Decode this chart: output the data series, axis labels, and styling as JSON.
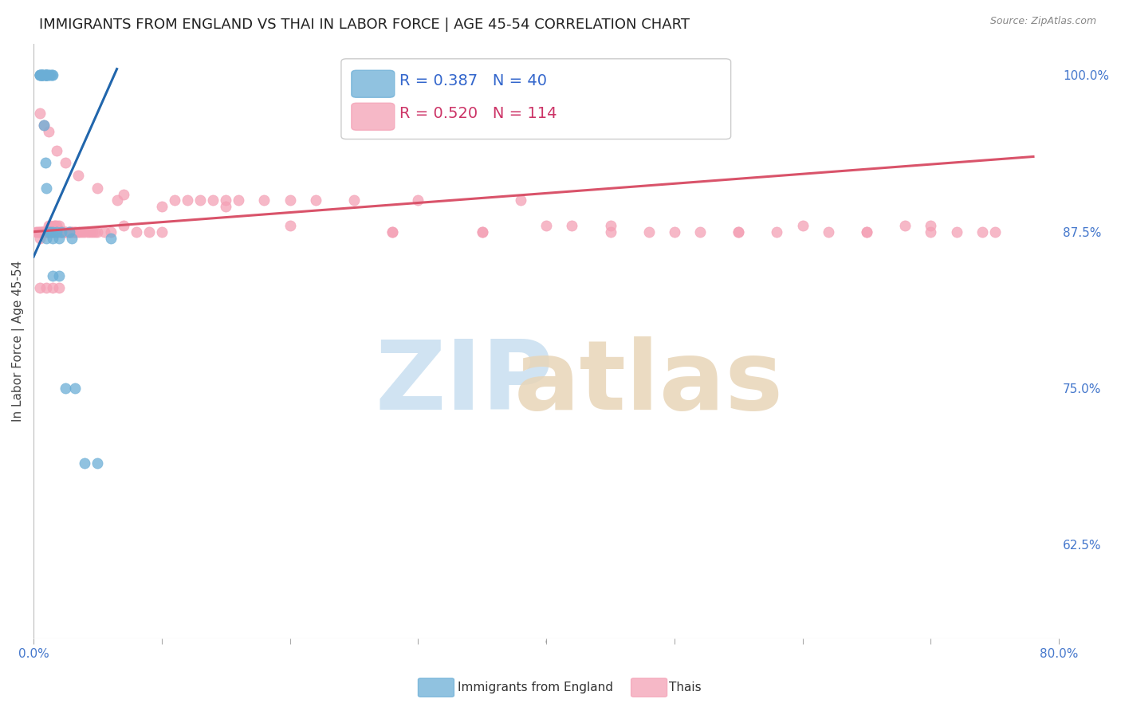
{
  "title": "IMMIGRANTS FROM ENGLAND VS THAI IN LABOR FORCE | AGE 45-54 CORRELATION CHART",
  "source": "Source: ZipAtlas.com",
  "ylabel": "In Labor Force | Age 45-54",
  "xlim": [
    0.0,
    0.8
  ],
  "ylim": [
    0.55,
    1.025
  ],
  "xticks": [
    0.0,
    0.1,
    0.2,
    0.3,
    0.4,
    0.5,
    0.6,
    0.7,
    0.8
  ],
  "xticklabels": [
    "0.0%",
    "",
    "",
    "",
    "",
    "",
    "",
    "",
    "80.0%"
  ],
  "yticks": [
    0.625,
    0.75,
    0.875,
    1.0
  ],
  "yticklabels": [
    "62.5%",
    "75.0%",
    "87.5%",
    "100.0%"
  ],
  "legend_R_blue": "R = 0.387",
  "legend_N_blue": "N = 40",
  "legend_R_pink": "R = 0.520",
  "legend_N_pink": "N = 114",
  "blue_color": "#6baed6",
  "pink_color": "#f4a0b5",
  "blue_line_color": "#2166ac",
  "pink_line_color": "#d9536a",
  "blue_x": [
    0.005,
    0.005,
    0.005,
    0.006,
    0.006,
    0.007,
    0.007,
    0.007,
    0.008,
    0.009,
    0.009,
    0.01,
    0.01,
    0.01,
    0.01,
    0.011,
    0.012,
    0.013,
    0.014,
    0.015,
    0.008,
    0.009,
    0.01,
    0.012,
    0.013,
    0.015,
    0.018,
    0.022,
    0.028,
    0.015,
    0.02,
    0.025,
    0.032,
    0.04,
    0.05,
    0.01,
    0.015,
    0.02,
    0.03,
    0.06
  ],
  "blue_y": [
    1.0,
    1.0,
    1.0,
    1.0,
    1.0,
    1.0,
    1.0,
    1.0,
    1.0,
    1.0,
    1.0,
    1.0,
    1.0,
    1.0,
    1.0,
    1.0,
    1.0,
    1.0,
    1.0,
    1.0,
    0.96,
    0.93,
    0.91,
    0.875,
    0.875,
    0.875,
    0.875,
    0.875,
    0.875,
    0.84,
    0.84,
    0.75,
    0.75,
    0.69,
    0.69,
    0.87,
    0.87,
    0.87,
    0.87,
    0.87
  ],
  "pink_x": [
    0.002,
    0.003,
    0.004,
    0.005,
    0.005,
    0.006,
    0.007,
    0.007,
    0.008,
    0.008,
    0.009,
    0.009,
    0.01,
    0.01,
    0.011,
    0.011,
    0.012,
    0.012,
    0.013,
    0.013,
    0.014,
    0.014,
    0.015,
    0.015,
    0.016,
    0.016,
    0.017,
    0.017,
    0.018,
    0.018,
    0.019,
    0.02,
    0.02,
    0.021,
    0.022,
    0.022,
    0.023,
    0.024,
    0.025,
    0.025,
    0.027,
    0.028,
    0.029,
    0.03,
    0.031,
    0.032,
    0.033,
    0.035,
    0.036,
    0.038,
    0.04,
    0.042,
    0.044,
    0.046,
    0.048,
    0.05,
    0.055,
    0.06,
    0.065,
    0.07,
    0.08,
    0.09,
    0.1,
    0.11,
    0.12,
    0.13,
    0.14,
    0.15,
    0.16,
    0.18,
    0.2,
    0.22,
    0.25,
    0.28,
    0.3,
    0.35,
    0.38,
    0.4,
    0.42,
    0.45,
    0.48,
    0.5,
    0.52,
    0.55,
    0.58,
    0.6,
    0.62,
    0.65,
    0.68,
    0.7,
    0.005,
    0.008,
    0.012,
    0.018,
    0.025,
    0.035,
    0.05,
    0.07,
    0.1,
    0.15,
    0.2,
    0.28,
    0.35,
    0.45,
    0.55,
    0.65,
    0.7,
    0.72,
    0.74,
    0.75,
    0.005,
    0.01,
    0.015,
    0.02
  ],
  "pink_y": [
    0.875,
    0.875,
    0.875,
    0.875,
    0.87,
    0.875,
    0.875,
    0.875,
    0.875,
    0.875,
    0.875,
    0.875,
    0.875,
    0.875,
    0.875,
    0.875,
    0.875,
    0.88,
    0.875,
    0.88,
    0.875,
    0.875,
    0.875,
    0.875,
    0.875,
    0.88,
    0.875,
    0.88,
    0.875,
    0.88,
    0.875,
    0.875,
    0.88,
    0.875,
    0.875,
    0.875,
    0.875,
    0.875,
    0.875,
    0.875,
    0.875,
    0.875,
    0.875,
    0.875,
    0.875,
    0.875,
    0.875,
    0.875,
    0.875,
    0.875,
    0.875,
    0.875,
    0.875,
    0.875,
    0.875,
    0.875,
    0.875,
    0.875,
    0.9,
    0.88,
    0.875,
    0.875,
    0.875,
    0.9,
    0.9,
    0.9,
    0.9,
    0.9,
    0.9,
    0.9,
    0.9,
    0.9,
    0.9,
    0.875,
    0.9,
    0.875,
    0.9,
    0.88,
    0.88,
    0.88,
    0.875,
    0.875,
    0.875,
    0.875,
    0.875,
    0.88,
    0.875,
    0.875,
    0.88,
    0.88,
    0.97,
    0.96,
    0.955,
    0.94,
    0.93,
    0.92,
    0.91,
    0.905,
    0.895,
    0.895,
    0.88,
    0.875,
    0.875,
    0.875,
    0.875,
    0.875,
    0.875,
    0.875,
    0.875,
    0.875,
    0.83,
    0.83,
    0.83,
    0.83
  ],
  "blue_line_x0": 0.0,
  "blue_line_x1": 0.065,
  "pink_line_x0": 0.0,
  "pink_line_x1": 0.78,
  "blue_line_y0": 0.855,
  "blue_line_y1": 1.005,
  "pink_line_y0": 0.875,
  "pink_line_y1": 0.935,
  "background_color": "#ffffff",
  "grid_color": "#e0e0e0",
  "title_fontsize": 13,
  "axis_label_fontsize": 11,
  "tick_fontsize": 11,
  "legend_fontsize": 14,
  "marker_size": 90
}
